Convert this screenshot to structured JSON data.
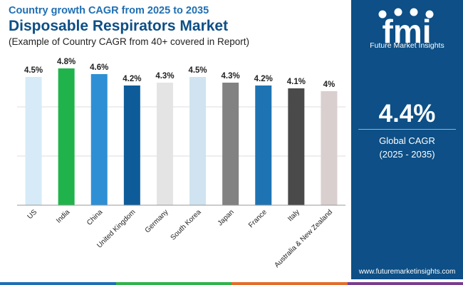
{
  "header": {
    "subtitle": "Country growth CAGR from 2025 to 2035",
    "title": "Disposable Respirators Market",
    "note": "(Example of Country CAGR from 40+ covered in Report)"
  },
  "sidebar": {
    "brand_logo_text": "fmi",
    "brand_name": "Future Market Insights",
    "kpi_value": "4.4%",
    "kpi_label_1": "Global CAGR",
    "kpi_label_2": "(2025 - 2035)",
    "website": "www.futuremarketinsights.com"
  },
  "colors": {
    "brand_blue": "#0d4f86",
    "footer": [
      "#1f6fb3",
      "#2fb34a",
      "#e46c2b",
      "#7a3c8e"
    ]
  },
  "chart_data": {
    "type": "bar",
    "categories": [
      "US",
      "India",
      "China",
      "United Kingdom",
      "Germany",
      "South Korea",
      "Japan",
      "France",
      "Italy",
      "Australia & New Zealand"
    ],
    "values": [
      4.5,
      4.8,
      4.6,
      4.2,
      4.3,
      4.5,
      4.3,
      4.2,
      4.1,
      4.0
    ],
    "value_labels": [
      "4.5%",
      "4.8%",
      "4.6%",
      "4.2%",
      "4.3%",
      "4.5%",
      "4.3%",
      "4.2%",
      "4.1%",
      "4%"
    ],
    "colors": [
      "#d6ebf7",
      "#21b34b",
      "#2f8fd4",
      "#0d5c99",
      "#e4e4e4",
      "#cfe3f0",
      "#828282",
      "#1e73b3",
      "#4a4a4a",
      "#d9cfcf"
    ],
    "ylim": [
      0,
      5.2
    ],
    "grid": true,
    "xlabel": "",
    "ylabel": ""
  }
}
